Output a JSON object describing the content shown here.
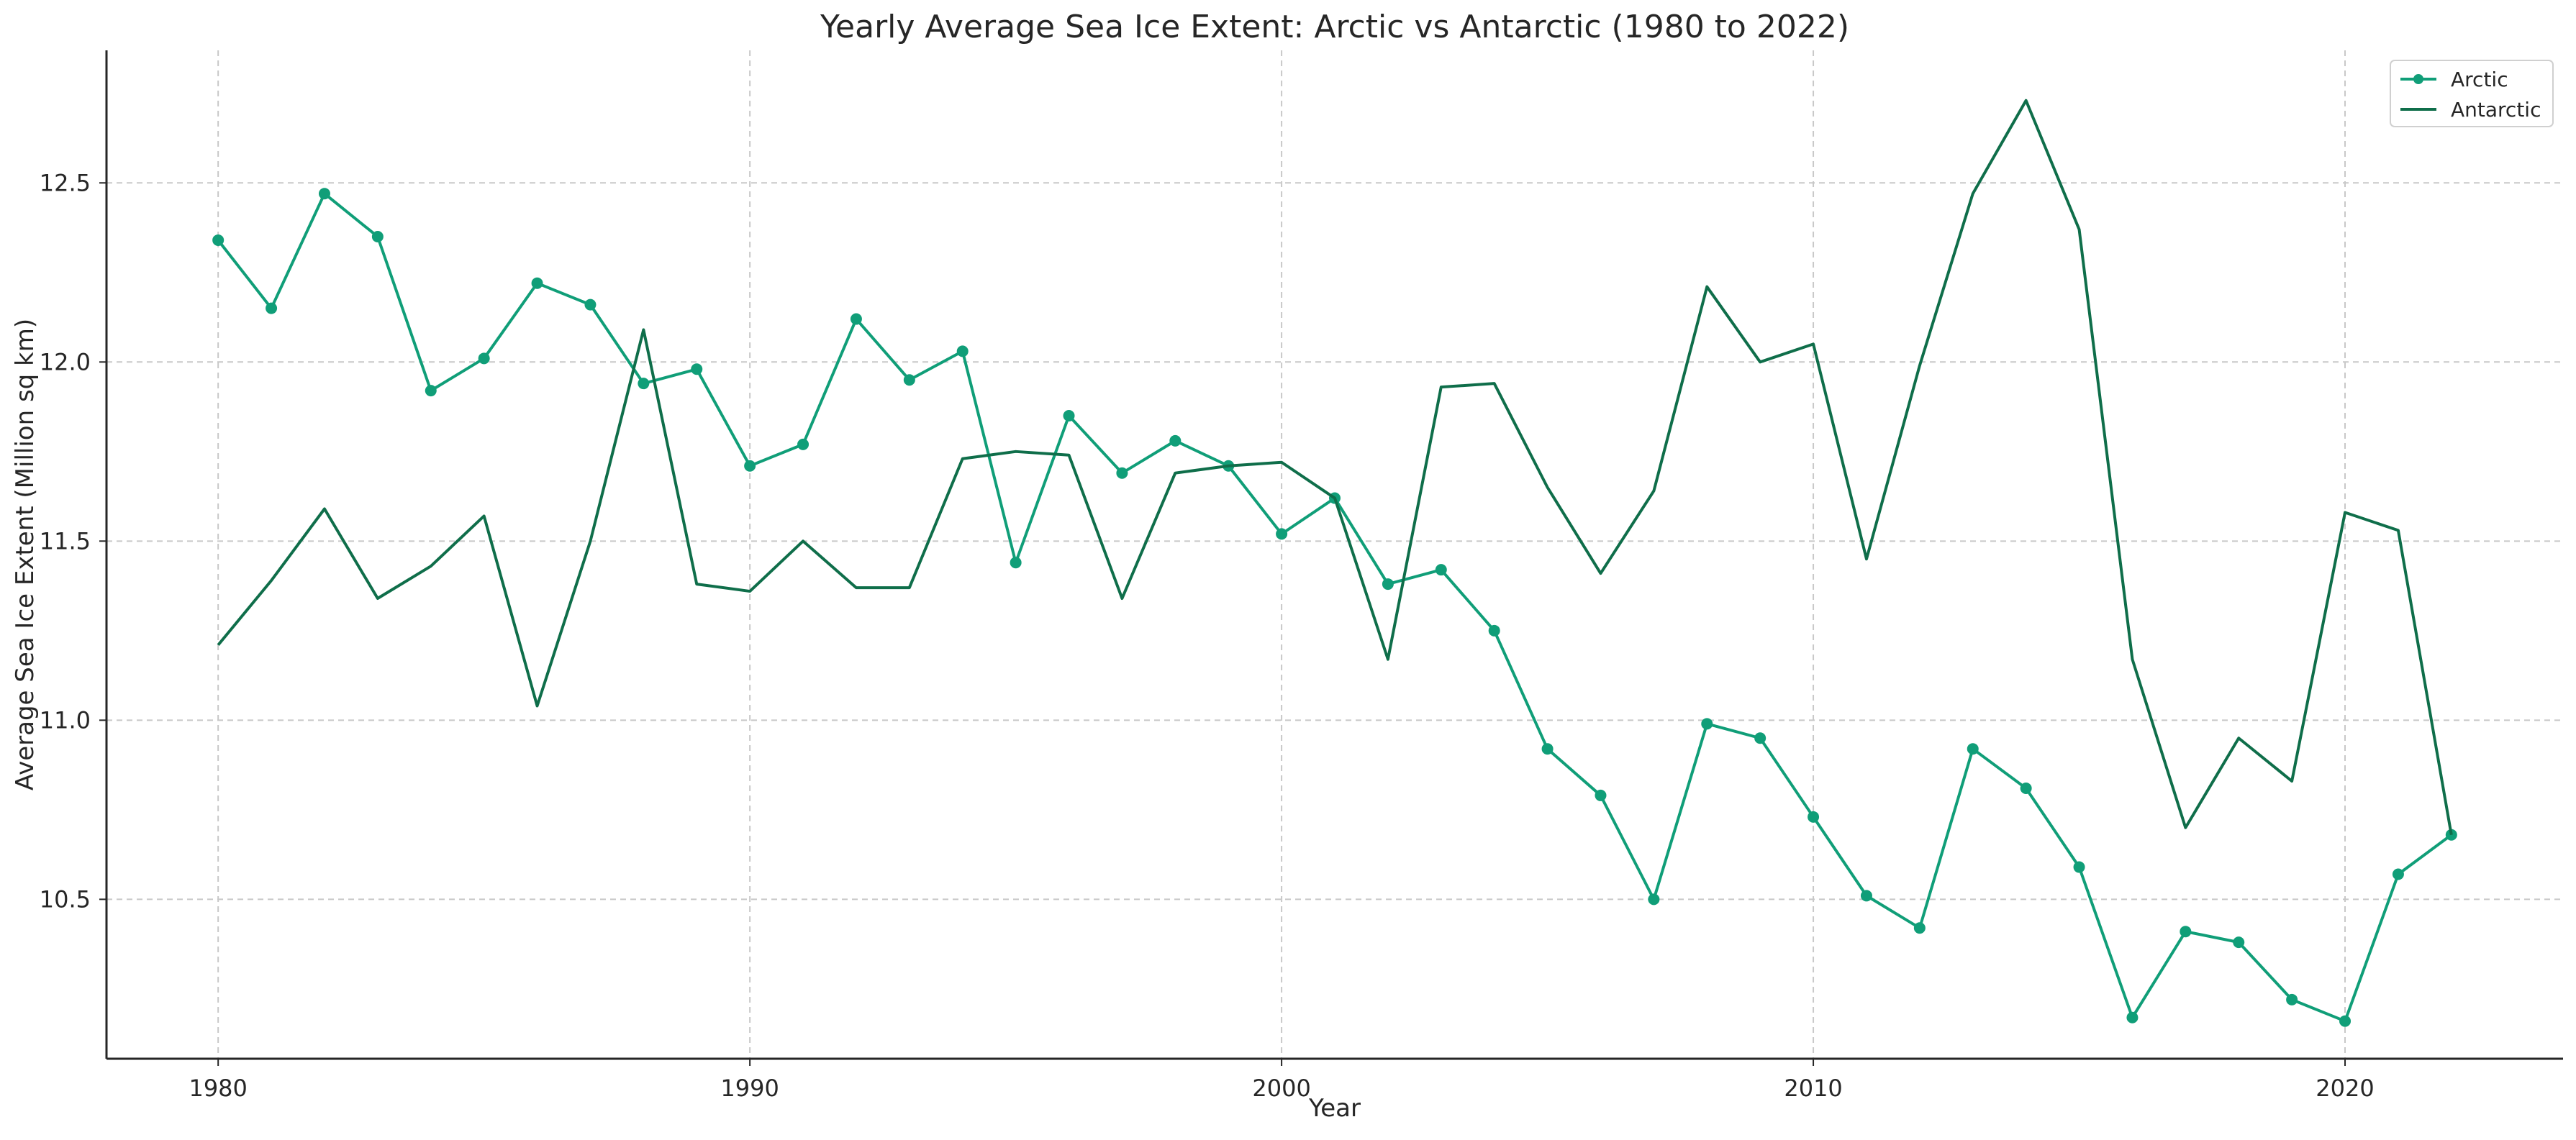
{
  "chart_data": {
    "type": "line",
    "title": "Yearly Average Sea Ice Extent: Arctic vs Antarctic (1980 to 2022)",
    "xlabel": "Year",
    "ylabel": "Average Sea Ice Extent (Million sq km)",
    "xlim": [
      1977.9,
      2024.1
    ],
    "ylim": [
      10.055,
      12.87
    ],
    "x_ticks": [
      1980,
      1990,
      2000,
      2010,
      2020
    ],
    "y_ticks": [
      10.5,
      11.0,
      11.5,
      12.0,
      12.5
    ],
    "grid": true,
    "legend_position": "top-right",
    "x": [
      1980,
      1981,
      1982,
      1983,
      1984,
      1985,
      1986,
      1987,
      1988,
      1989,
      1990,
      1991,
      1992,
      1993,
      1994,
      1995,
      1996,
      1997,
      1998,
      1999,
      2000,
      2001,
      2002,
      2003,
      2004,
      2005,
      2006,
      2007,
      2008,
      2009,
      2010,
      2011,
      2012,
      2013,
      2014,
      2015,
      2016,
      2017,
      2018,
      2019,
      2020,
      2021,
      2022
    ],
    "series": [
      {
        "name": "Arctic",
        "color": "#109e78",
        "marker": "circle",
        "values": [
          12.34,
          12.15,
          12.47,
          12.35,
          11.92,
          12.01,
          12.22,
          12.16,
          11.94,
          11.98,
          11.71,
          11.77,
          12.12,
          11.95,
          12.03,
          11.44,
          11.85,
          11.69,
          11.78,
          11.71,
          11.52,
          11.62,
          11.38,
          11.42,
          11.25,
          10.92,
          10.79,
          10.5,
          10.99,
          10.95,
          10.73,
          10.51,
          10.42,
          10.92,
          10.81,
          10.59,
          10.17,
          10.41,
          10.38,
          10.22,
          10.16,
          10.57,
          10.68
        ]
      },
      {
        "name": "Antarctic",
        "color": "#0f6e4a",
        "marker": "none",
        "values": [
          11.21,
          11.39,
          11.59,
          11.34,
          11.43,
          11.57,
          11.04,
          11.5,
          12.09,
          11.38,
          11.36,
          11.5,
          11.37,
          11.37,
          11.73,
          11.75,
          11.74,
          11.34,
          11.69,
          11.71,
          11.72,
          11.62,
          11.17,
          11.93,
          11.94,
          11.65,
          11.41,
          11.64,
          12.21,
          12.0,
          12.05,
          11.45,
          11.99,
          12.47,
          12.73,
          12.37,
          11.17,
          10.7,
          10.95,
          10.83,
          11.58,
          11.53,
          10.68
        ]
      }
    ]
  }
}
